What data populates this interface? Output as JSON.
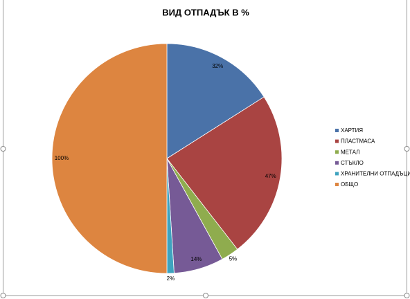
{
  "chart_data": {
    "type": "pie",
    "title": "ВИД ОТПАДЪК В %",
    "categories": [
      "ХАРТИЯ",
      "ПЛАСТМАСА",
      "МЕТАЛ",
      "СТЪКЛО",
      "ХРАНИТЕЛНИ ОТПАДЪЦИ",
      "ОБЩО"
    ],
    "values": [
      32,
      47,
      5,
      14,
      2,
      100
    ],
    "value_labels": [
      "32%",
      "47%",
      "5%",
      "14%",
      "2%",
      "100%"
    ],
    "colors": [
      "#4a72a8",
      "#a94442",
      "#8fac4e",
      "#765a96",
      "#3fa3bf",
      "#dd8540"
    ],
    "legend": "right"
  }
}
